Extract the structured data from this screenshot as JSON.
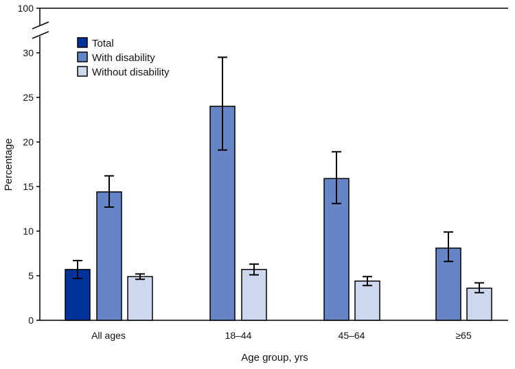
{
  "chart_data": {
    "type": "bar",
    "title": "",
    "xlabel": "Age group, yrs",
    "ylabel": "Percentage",
    "ylim": [
      0,
      30
    ],
    "axis_break": true,
    "break_top_tick": "100",
    "yticks": [
      "0",
      "5",
      "10",
      "15",
      "20",
      "25",
      "30"
    ],
    "grid": false,
    "legend_position": "top-left",
    "categories": [
      "All ages",
      "18–44",
      "45–64",
      "≥65"
    ],
    "series": [
      {
        "name": "Total",
        "color": "#003399",
        "values": [
          5.7,
          null,
          null,
          null
        ],
        "ci_low": [
          4.7,
          null,
          null,
          null
        ],
        "ci_high": [
          6.7,
          null,
          null,
          null
        ]
      },
      {
        "name": "With disability",
        "color": "#6685C6",
        "values": [
          14.4,
          24.0,
          15.9,
          8.1
        ],
        "ci_low": [
          12.7,
          19.1,
          13.1,
          6.6
        ],
        "ci_high": [
          16.2,
          29.5,
          18.9,
          9.9
        ]
      },
      {
        "name": "Without disability",
        "color": "#CDD8EE",
        "values": [
          4.9,
          5.7,
          4.4,
          3.6
        ],
        "ci_low": [
          4.6,
          5.1,
          3.9,
          3.1
        ],
        "ci_high": [
          5.2,
          6.3,
          4.9,
          4.2
        ]
      }
    ]
  }
}
